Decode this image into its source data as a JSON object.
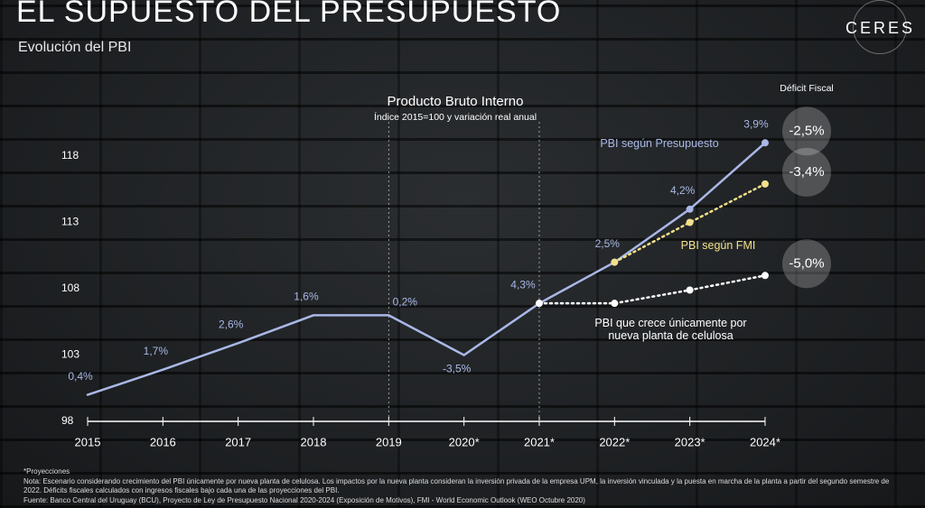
{
  "header": {
    "title": "EL SUPUESTO DEL PRESUPUESTO",
    "subtitle": "Evolución del PBI",
    "logo": "CERES"
  },
  "chart_data": {
    "type": "line",
    "title": "Producto Bruto Interno",
    "subtitle": "Índice 2015=100 y variación real anual",
    "categories": [
      "2015",
      "2016",
      "2017",
      "2018",
      "2019",
      "2020*",
      "2021*",
      "2022*",
      "2023*",
      "2024*"
    ],
    "ylim": [
      98,
      121
    ],
    "yticks": [
      98,
      103,
      108,
      113,
      118
    ],
    "growth_labels": [
      "0,4%",
      "1,7%",
      "2,6%",
      "1,6%",
      "0,2%",
      "-3,5%",
      "4,3%",
      "2,5%",
      "4,2%",
      "3,9%"
    ],
    "deficit_title": "Déficit Fiscal",
    "series": [
      {
        "name": "PBI según Presupuesto",
        "color": "#a9b8e6",
        "dash": false,
        "deficit": "-2,5%",
        "values": [
          100.0,
          101.9,
          103.9,
          106.0,
          106.0,
          103.0,
          106.9,
          110.0,
          114.0,
          119.0
        ]
      },
      {
        "name": "PBI según FMI",
        "color": "#f3e08a",
        "dash": true,
        "deficit": "-3,4%",
        "values": [
          null,
          null,
          null,
          null,
          null,
          null,
          null,
          110.0,
          113.0,
          115.9
        ]
      },
      {
        "name": "PBI que crece únicamente por nueva planta de celulosa",
        "color": "#ffffff",
        "dash": true,
        "deficit": "-5,0%",
        "values": [
          null,
          null,
          null,
          null,
          null,
          null,
          106.9,
          106.9,
          107.9,
          109.0
        ]
      }
    ]
  },
  "footnotes": [
    "*Proyecciones",
    "Nota: Escenario considerando crecimiento del PBI únicamente por nueva planta de celulosa. Los impactos por la nueva planta consideran la inversión privada de la empresa UPM, la inversión vinculada y la puesta en marcha de la planta a partir del segundo semestre de 2022. Déficits fiscales calculados con ingresos fiscales bajo cada una de las proyecciones del PBI.",
    "Fuente: Banco Central del Uruguay (BCU), Proyecto de Ley de Presupuesto Nacional 2020-2024 (Exposición de Motivos), FMI - World Economic Outlook (WEO Octubre 2020)"
  ]
}
